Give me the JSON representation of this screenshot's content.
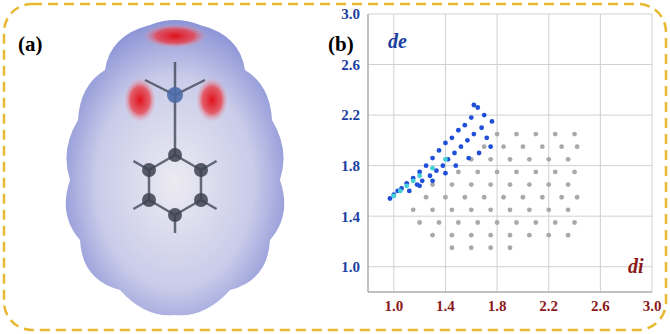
{
  "panel_a_label": "(a)",
  "chart_data": {
    "type": "scatter",
    "title": "(b)",
    "x_label": "di",
    "y_label": "de",
    "xlim": [
      0.8,
      3.0
    ],
    "ylim": [
      0.8,
      3.0
    ],
    "xticks": [
      {
        "value": 1,
        "label": "1.0"
      },
      1.4,
      1.8,
      2.2,
      2.6,
      {
        "value": 3,
        "label": "3.0"
      }
    ],
    "yticks": [
      {
        "value": 1,
        "label": "1.0"
      },
      1.4,
      1.8,
      2.2,
      2.6,
      {
        "value": 3,
        "label": "3.0"
      }
    ],
    "grid": true,
    "marker": "dot",
    "series": [
      {
        "color": "#a9a9a9",
        "x": [
          1.45,
          1.6,
          1.75,
          1.9,
          1.3,
          1.45,
          1.6,
          1.75,
          1.9,
          2.05,
          2.2,
          2.35,
          1.2,
          1.35,
          1.5,
          1.65,
          1.8,
          1.95,
          2.1,
          2.25,
          2.4,
          1.15,
          1.3,
          1.45,
          1.6,
          1.75,
          1.9,
          2.05,
          2.2,
          2.35,
          1.25,
          1.4,
          1.55,
          1.7,
          1.85,
          2.0,
          2.15,
          2.3,
          2.42,
          1.3,
          1.45,
          1.6,
          1.75,
          1.9,
          2.05,
          2.2,
          2.35,
          1.5,
          1.65,
          1.8,
          1.95,
          2.1,
          2.25,
          2.4,
          1.6,
          1.75,
          1.9,
          2.05,
          2.2,
          2.35,
          1.7,
          1.85,
          2.0,
          2.15,
          2.3,
          2.42,
          1.8,
          1.95,
          2.1,
          2.25,
          2.4
        ],
        "y": [
          1.15,
          1.15,
          1.15,
          1.15,
          1.25,
          1.25,
          1.25,
          1.25,
          1.25,
          1.25,
          1.25,
          1.25,
          1.35,
          1.35,
          1.35,
          1.35,
          1.35,
          1.35,
          1.35,
          1.35,
          1.35,
          1.45,
          1.45,
          1.45,
          1.45,
          1.45,
          1.45,
          1.45,
          1.45,
          1.45,
          1.55,
          1.55,
          1.55,
          1.55,
          1.55,
          1.55,
          1.55,
          1.55,
          1.55,
          1.65,
          1.65,
          1.65,
          1.65,
          1.65,
          1.65,
          1.65,
          1.65,
          1.75,
          1.75,
          1.75,
          1.75,
          1.75,
          1.75,
          1.75,
          1.85,
          1.85,
          1.85,
          1.85,
          1.85,
          1.85,
          1.95,
          1.95,
          1.95,
          1.95,
          1.95,
          1.95,
          2.05,
          2.05,
          2.05,
          2.05,
          2.05
        ]
      },
      {
        "color": "#1f4fd8",
        "x": [
          0.97,
          1.0,
          1.03,
          1.06,
          1.1,
          1.12,
          1.15,
          1.18,
          1.2,
          1.22,
          1.25,
          1.28,
          1.3,
          1.33,
          1.35,
          1.38,
          1.4,
          1.42,
          1.45,
          1.47,
          1.5,
          1.52,
          1.55,
          1.57,
          1.6,
          1.62,
          1.65,
          1.68,
          1.7,
          1.72,
          1.75,
          1.58,
          1.48,
          1.4,
          1.3,
          1.2,
          1.66,
          1.76,
          1.62
        ],
        "y": [
          1.54,
          1.57,
          1.6,
          1.62,
          1.66,
          1.6,
          1.7,
          1.65,
          1.75,
          1.68,
          1.8,
          1.72,
          1.86,
          1.76,
          1.92,
          1.8,
          1.98,
          1.85,
          2.02,
          1.9,
          2.08,
          1.95,
          2.12,
          2.0,
          2.18,
          2.05,
          2.26,
          2.1,
          2.2,
          2.02,
          1.95,
          1.86,
          1.8,
          1.74,
          1.68,
          1.64,
          1.9,
          2.15,
          2.28
        ]
      },
      {
        "color": "#3fd0d8",
        "x": [
          1.0,
          1.05,
          1.1,
          1.15,
          1.2,
          1.3,
          1.4
        ],
        "y": [
          1.56,
          1.6,
          1.64,
          1.68,
          1.72,
          1.78,
          1.85
        ]
      }
    ]
  }
}
